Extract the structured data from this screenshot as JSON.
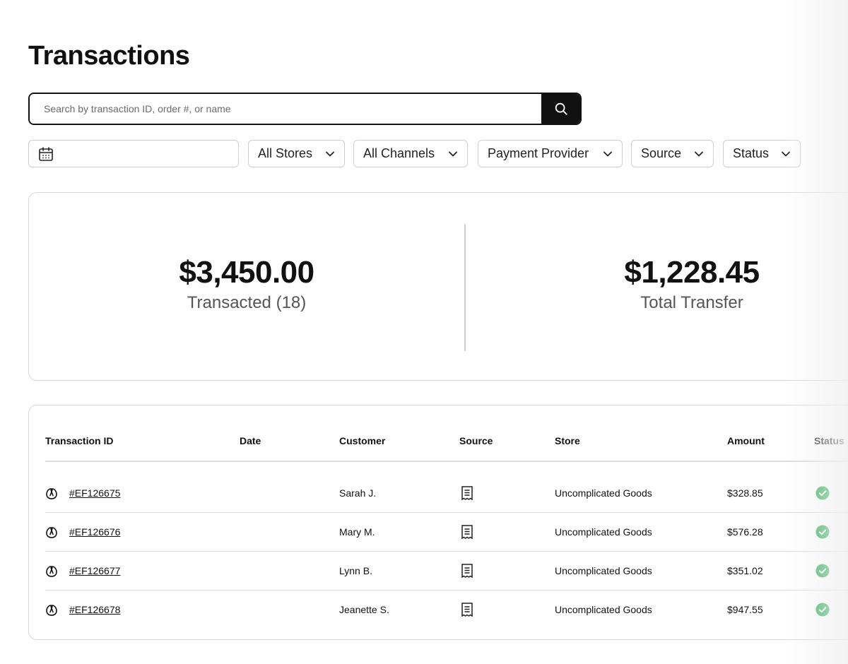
{
  "page": {
    "title": "Transactions"
  },
  "search": {
    "placeholder": "Search by transaction ID, order #, or name",
    "value": ""
  },
  "filters": {
    "date_value": "",
    "stores": "All Stores",
    "channels": "All Channels",
    "payment_provider": "Payment Provider",
    "source": "Source",
    "status": "Status"
  },
  "summary": {
    "transacted_value": "$3,450.00",
    "transacted_label": "Transacted (18)",
    "transfer_value": "$1,228.45",
    "transfer_label": "Total Transfer"
  },
  "table": {
    "columns": [
      "Transaction ID",
      "Date",
      "Customer",
      "Source",
      "Store",
      "Amount",
      "Status"
    ],
    "rows": [
      {
        "id": "#EF126675",
        "date": "",
        "customer": "Sarah J.",
        "source_icon": "receipt-icon",
        "store": "Uncomplicated Goods",
        "amount": "$328.85",
        "status": "success"
      },
      {
        "id": "#EF126676",
        "date": "",
        "customer": "Mary M.",
        "source_icon": "receipt-icon",
        "store": "Uncomplicated Goods",
        "amount": "$576.28",
        "status": "success"
      },
      {
        "id": "#EF126677",
        "date": "",
        "customer": "Lynn B.",
        "source_icon": "receipt-icon",
        "store": "Uncomplicated Goods",
        "amount": "$351.02",
        "status": "success"
      },
      {
        "id": "#EF126678",
        "date": "",
        "customer": "Jeanette S.",
        "source_icon": "receipt-icon",
        "store": "Uncomplicated Goods",
        "amount": "$947.55",
        "status": "success"
      }
    ]
  },
  "colors": {
    "accent": "#111111",
    "success": "#1ea84a",
    "border": "#d6d6d6"
  }
}
